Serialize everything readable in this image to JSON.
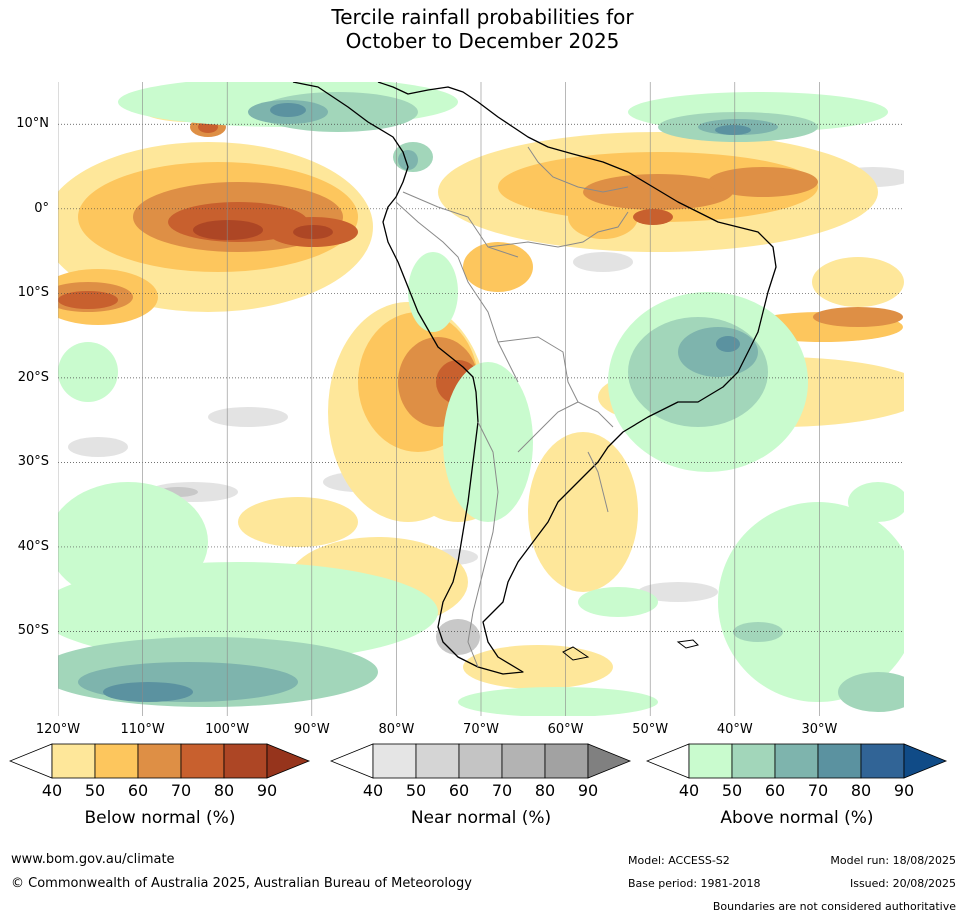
{
  "title": {
    "line1": "Tercile rainfall probabilities for",
    "line2": "October to December 2025"
  },
  "map": {
    "lat_labels": [
      "10°N",
      "0°",
      "10°S",
      "20°S",
      "30°S",
      "40°S",
      "50°S"
    ],
    "lon_labels": [
      "120°W",
      "110°W",
      "100°W",
      "90°W",
      "80°W",
      "70°W",
      "60°W",
      "50°W",
      "40°W",
      "30°W"
    ],
    "lat_values": [
      10,
      0,
      -10,
      -20,
      -30,
      -40,
      -50
    ],
    "lon_values": [
      -120,
      -110,
      -100,
      -90,
      -80,
      -70,
      -60,
      -50,
      -40,
      -30
    ],
    "extent": {
      "lon_min": -120,
      "lon_max": -20,
      "lat_min": -60,
      "lat_max": 15
    }
  },
  "colorbars": [
    {
      "name": "below",
      "label": "Below normal (%)",
      "ticks": [
        "40",
        "50",
        "60",
        "70",
        "80",
        "90"
      ],
      "colors": [
        "#ffffff",
        "#fee79a",
        "#fdc65d",
        "#de8f45",
        "#c8602e",
        "#ad4625",
        "#96341c"
      ]
    },
    {
      "name": "near",
      "label": "Near normal (%)",
      "ticks": [
        "40",
        "50",
        "60",
        "70",
        "80",
        "90"
      ],
      "colors": [
        "#ffffff",
        "#e5e5e5",
        "#d5d5d5",
        "#c4c4c4",
        "#b3b3b3",
        "#a2a2a2",
        "#808080"
      ]
    },
    {
      "name": "above",
      "label": "Above normal (%)",
      "ticks": [
        "40",
        "50",
        "60",
        "70",
        "80",
        "90"
      ],
      "colors": [
        "#ffffff",
        "#c9fbce",
        "#a2d6ba",
        "#7eb4ad",
        "#5b92a0",
        "#316496",
        "#104b87"
      ]
    }
  ],
  "footer": {
    "website": "www.bom.gov.au/climate",
    "copyright": "© Commonwealth of Australia 2025, Australian Bureau of Meteorology",
    "model": "Model: ACCESS-S2",
    "model_run": "Model run: 18/08/2025",
    "base_period": "Base period: 1981-2018",
    "issued": "Issued: 20/08/2025",
    "disclaimer": "Boundaries are not considered authoritative"
  }
}
